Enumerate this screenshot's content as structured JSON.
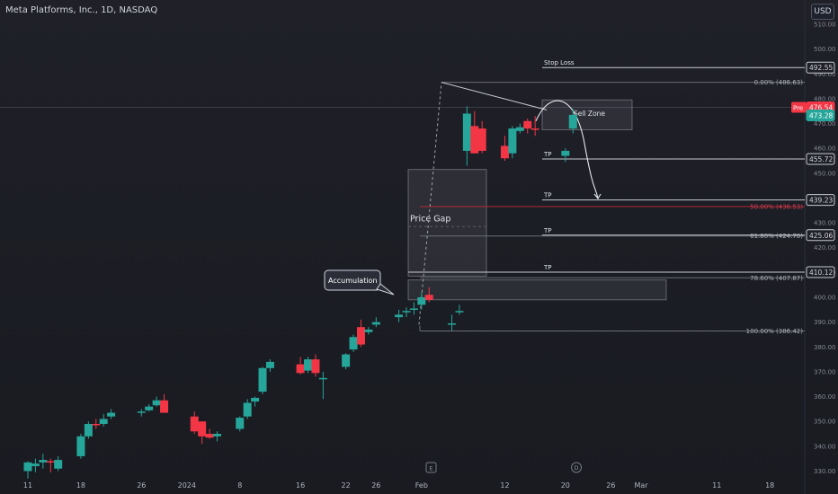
{
  "header": {
    "title": "Meta Platforms, Inc., 1D, NASDAQ"
  },
  "currency_button": "USD",
  "colors": {
    "up": "#26a69a",
    "down": "#f23645",
    "grid_text": "#868993",
    "line": "#b2b5be",
    "red_line": "#b22833"
  },
  "chart_data": {
    "type": "candlestick",
    "title": "Meta Platforms, Inc., 1D, NASDAQ",
    "ylim": [
      328,
      515
    ],
    "y_ticks": [
      330,
      340,
      350,
      360,
      370,
      380,
      390,
      400,
      410,
      420,
      430,
      450,
      460,
      470,
      480,
      490,
      500,
      510
    ],
    "x_ticks": [
      "11",
      "18",
      "26",
      "2024",
      "8",
      "16",
      "22",
      "26",
      "Feb",
      "12",
      "20",
      "26",
      "Mar",
      "11",
      "18"
    ],
    "series": [
      {
        "date": "2023-12-11",
        "open": 330,
        "high": 334,
        "low": 327,
        "close": 333.5
      },
      {
        "date": "2023-12-12",
        "open": 332,
        "high": 335,
        "low": 329.5,
        "close": 333
      },
      {
        "date": "2023-12-13",
        "open": 333.5,
        "high": 337,
        "low": 331,
        "close": 334.5
      },
      {
        "date": "2023-12-14",
        "open": 334,
        "high": 335,
        "low": 329.5,
        "close": 333.5
      },
      {
        "date": "2023-12-15",
        "open": 331,
        "high": 336,
        "low": 330,
        "close": 334.5
      },
      {
        "date": "2023-12-18",
        "open": 336,
        "high": 345,
        "low": 335,
        "close": 344
      },
      {
        "date": "2023-12-19",
        "open": 344,
        "high": 350,
        "low": 343,
        "close": 349
      },
      {
        "date": "2023-12-20",
        "open": 349,
        "high": 351,
        "low": 347,
        "close": 348.5
      },
      {
        "date": "2023-12-21",
        "open": 349,
        "high": 353,
        "low": 348,
        "close": 351
      },
      {
        "date": "2023-12-22",
        "open": 352,
        "high": 355,
        "low": 351,
        "close": 353.5
      },
      {
        "date": "2023-12-26",
        "open": 353.5,
        "high": 355,
        "low": 352,
        "close": 354
      },
      {
        "date": "2023-12-27",
        "open": 354.5,
        "high": 357,
        "low": 354,
        "close": 356
      },
      {
        "date": "2023-12-28",
        "open": 356.5,
        "high": 360,
        "low": 356,
        "close": 358.5
      },
      {
        "date": "2023-12-29",
        "open": 358.5,
        "high": 361,
        "low": 354,
        "close": 353.5
      },
      {
        "date": "2024-01-02",
        "open": 352,
        "high": 354,
        "low": 345,
        "close": 346
      },
      {
        "date": "2024-01-03",
        "open": 350,
        "high": 350,
        "low": 341,
        "close": 344
      },
      {
        "date": "2024-01-04",
        "open": 345,
        "high": 347,
        "low": 343,
        "close": 343.5
      },
      {
        "date": "2024-01-05",
        "open": 344,
        "high": 346,
        "low": 342,
        "close": 345
      },
      {
        "date": "2024-01-08",
        "open": 347,
        "high": 352,
        "low": 346,
        "close": 351.5
      },
      {
        "date": "2024-01-09",
        "open": 352,
        "high": 359,
        "low": 351,
        "close": 357.5
      },
      {
        "date": "2024-01-10",
        "open": 358,
        "high": 360,
        "low": 356,
        "close": 359.5
      },
      {
        "date": "2024-01-11",
        "open": 362,
        "high": 372,
        "low": 361,
        "close": 371.5
      },
      {
        "date": "2024-01-12",
        "open": 371.5,
        "high": 375,
        "low": 370,
        "close": 374
      },
      {
        "date": "2024-01-16",
        "open": 373,
        "high": 376,
        "low": 369,
        "close": 369.5
      },
      {
        "date": "2024-01-17",
        "open": 370.5,
        "high": 376,
        "low": 369.5,
        "close": 375
      },
      {
        "date": "2024-01-18",
        "open": 375,
        "high": 377,
        "low": 368,
        "close": 369.5
      },
      {
        "date": "2024-01-19",
        "open": 367,
        "high": 370,
        "low": 359,
        "close": 367.5
      },
      {
        "date": "2024-01-22",
        "open": 372,
        "high": 377.5,
        "low": 371,
        "close": 377
      },
      {
        "date": "2024-01-23",
        "open": 379,
        "high": 385,
        "low": 378,
        "close": 384
      },
      {
        "date": "2024-01-24",
        "open": 388,
        "high": 391,
        "low": 380,
        "close": 381
      },
      {
        "date": "2024-01-25",
        "open": 386,
        "high": 388,
        "low": 385,
        "close": 387
      },
      {
        "date": "2024-01-26",
        "open": 389,
        "high": 392,
        "low": 388,
        "close": 390
      },
      {
        "date": "2024-01-29",
        "open": 392,
        "high": 395,
        "low": 390,
        "close": 393
      },
      {
        "date": "2024-01-30",
        "open": 394,
        "high": 396,
        "low": 392,
        "close": 394.5
      },
      {
        "date": "2024-01-31",
        "open": 395,
        "high": 398,
        "low": 393,
        "close": 395.5
      },
      {
        "date": "2024-02-01",
        "open": 397,
        "high": 402,
        "low": 395,
        "close": 400
      },
      {
        "date": "2024-02-02",
        "open": 401,
        "high": 404,
        "low": 398,
        "close": 399
      },
      {
        "date": "2024-02-05",
        "open": 389,
        "high": 393,
        "low": 386.5,
        "close": 389.5
      },
      {
        "date": "2024-02-06",
        "open": 394,
        "high": 397,
        "low": 393,
        "close": 394.5
      },
      {
        "date": "2024-02-07",
        "open": 459,
        "high": 477,
        "low": 453,
        "close": 474
      },
      {
        "date": "2024-02-08",
        "open": 469,
        "high": 475,
        "low": 458,
        "close": 458
      },
      {
        "date": "2024-02-09",
        "open": 468,
        "high": 471,
        "low": 458,
        "close": 459
      },
      {
        "date": "2024-02-12",
        "open": 461,
        "high": 465,
        "low": 455,
        "close": 456
      },
      {
        "date": "2024-02-13",
        "open": 458,
        "high": 469,
        "low": 456,
        "close": 468
      },
      {
        "date": "2024-02-14",
        "open": 467,
        "high": 470,
        "low": 466,
        "close": 468.5
      },
      {
        "date": "2024-02-15",
        "open": 471,
        "high": 472,
        "low": 466,
        "close": 468
      },
      {
        "date": "2024-02-16",
        "open": 468,
        "high": 473,
        "low": 465,
        "close": 467.5
      },
      {
        "date": "2024-02-20",
        "open": 457,
        "high": 460,
        "low": 454.5,
        "close": 459
      },
      {
        "date": "2024-02-21",
        "open": 468,
        "high": 476,
        "low": 466,
        "close": 473.5
      }
    ],
    "levels": [
      {
        "label": "Stop Loss",
        "value": 492.55,
        "price_tag": "492.55"
      },
      {
        "label": "TP",
        "value": 455.72,
        "price_tag": "455.72"
      },
      {
        "label": "TP",
        "value": 439.23,
        "price_tag": "439.23"
      },
      {
        "label": "TP",
        "value": 425.06,
        "price_tag": "425.06"
      },
      {
        "label": "TP",
        "value": 410.12,
        "price_tag": "410.12"
      }
    ],
    "fib_levels": [
      {
        "label": "0.00% (486.63)",
        "value": 486.63
      },
      {
        "label": "50.00% (436.53)",
        "value": 436.53
      },
      {
        "label": "61.80% (424.70)",
        "value": 424.7
      },
      {
        "label": "78.60% (407.87)",
        "value": 407.87
      },
      {
        "label": "100.00% (386.42)",
        "value": 386.42
      }
    ],
    "annotations": {
      "sell_zone": "Sell Zone",
      "price_gap": "Price Gap",
      "accumulation": "Accumulation",
      "event_e": "E",
      "event_d": "D"
    },
    "last_price": {
      "pre_label": "Pre",
      "pre_value": "476.54",
      "close_value": "473.28"
    }
  }
}
